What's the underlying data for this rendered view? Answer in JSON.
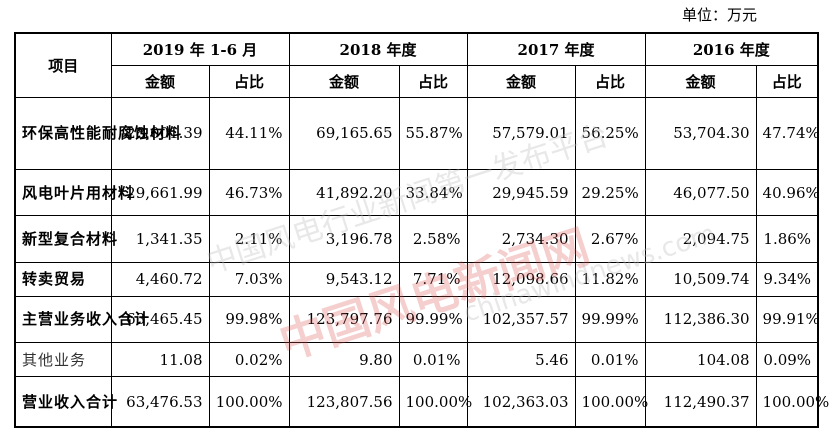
{
  "unit_label": "单位：万元",
  "header": {
    "item": "项目",
    "periods": [
      "2019 年 1-6 月",
      "2018 年度",
      "2017 年度",
      "2016 年度"
    ],
    "amount": "金额",
    "ratio": "占比"
  },
  "rows": [
    {
      "label": "环保高性能耐腐蚀材料",
      "bold": true,
      "values": [
        "28,001.39",
        "44.11%",
        "69,165.65",
        "55.87%",
        "57,579.01",
        "56.25%",
        "53,704.30",
        "47.74%"
      ]
    },
    {
      "label": "风电叶片用材料",
      "bold": true,
      "values": [
        "29,661.99",
        "46.73%",
        "41,892.20",
        "33.84%",
        "29,945.59",
        "29.25%",
        "46,077.50",
        "40.96%"
      ]
    },
    {
      "label": "新型复合材料",
      "bold": true,
      "values": [
        "1,341.35",
        "2.11%",
        "3,196.78",
        "2.58%",
        "2,734.30",
        "2.67%",
        "2,094.75",
        "1.86%"
      ]
    },
    {
      "label": "转卖贸易",
      "bold": true,
      "values": [
        "4,460.72",
        "7.03%",
        "9,543.12",
        "7.71%",
        "12,098.66",
        "11.82%",
        "10,509.74",
        "9.34%"
      ]
    },
    {
      "label": "主营业务收入合计",
      "bold": true,
      "values": [
        "63,465.45",
        "99.98%",
        "123,797.76",
        "99.99%",
        "102,357.57",
        "99.99%",
        "112,386.30",
        "99.91%"
      ]
    },
    {
      "label": "其他业务",
      "bold": false,
      "values": [
        "11.08",
        "0.02%",
        "9.80",
        "0.01%",
        "5.46",
        "0.01%",
        "104.08",
        "0.09%"
      ]
    },
    {
      "label": "营业收入合计",
      "bold": true,
      "values": [
        "63,476.53",
        "100.00%",
        "123,807.56",
        "100.00%",
        "102,363.03",
        "100.00%",
        "112,490.37",
        "100.00%"
      ]
    }
  ],
  "watermark": {
    "line1": "中国风电行业新闻第一发布平台",
    "line2": "中国风电新闻网",
    "line3": "chinawindnews.com"
  }
}
